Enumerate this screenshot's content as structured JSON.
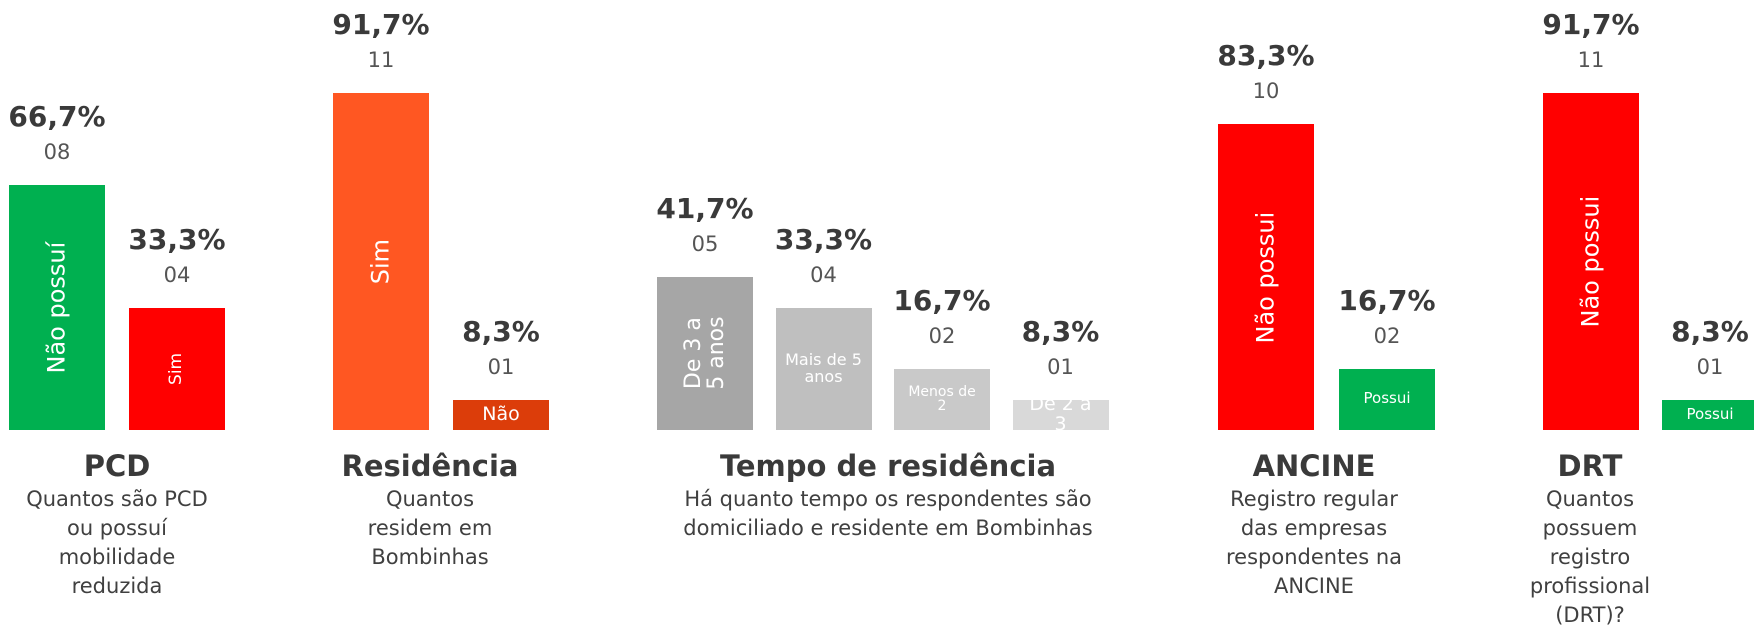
{
  "chart_data": [
    {
      "type": "bar",
      "title": "PCD",
      "subtitle": "Quantos são PCD ou possuí mobilidade reduzida",
      "categories": [
        "Não possuí",
        "Sim"
      ],
      "values": [
        66.7,
        33.3
      ],
      "value_labels": [
        "66,7%",
        "33,3%"
      ],
      "counts": [
        8,
        4
      ],
      "count_labels": [
        "08",
        "04"
      ],
      "colors": [
        "#00b050",
        "#ff0000"
      ]
    },
    {
      "type": "bar",
      "title": "Residência",
      "subtitle": "Quantos residem em Bombinhas",
      "categories": [
        "Sim",
        "Não"
      ],
      "values": [
        91.7,
        8.3
      ],
      "value_labels": [
        "91,7%",
        "8,3%"
      ],
      "counts": [
        11,
        1
      ],
      "count_labels": [
        "11",
        "01"
      ],
      "colors": [
        "#ff5722",
        "#dc3d0a"
      ]
    },
    {
      "type": "bar",
      "title": "Tempo de residência",
      "subtitle": "Há quanto tempo os respondentes são domiciliado e residente em Bombinhas",
      "categories": [
        "De 3 a 5 anos",
        "Mais de 5 anos",
        "Menos de 2",
        "De 2 a 3"
      ],
      "values": [
        41.7,
        33.3,
        16.7,
        8.3
      ],
      "value_labels": [
        "41,7%",
        "33,3%",
        "16,7%",
        "8,3%"
      ],
      "counts": [
        5,
        4,
        2,
        1
      ],
      "count_labels": [
        "05",
        "04",
        "02",
        "01"
      ],
      "colors": [
        "#a6a6a6",
        "#bfbfbf",
        "#c9c9c9",
        "#d9d9d9"
      ]
    },
    {
      "type": "bar",
      "title": "ANCINE",
      "subtitle": "Registro regular das empresas respondentes na ANCINE",
      "categories": [
        "Não possui",
        "Possui"
      ],
      "values": [
        83.3,
        16.7
      ],
      "value_labels": [
        "83,3%",
        "16,7%"
      ],
      "counts": [
        10,
        2
      ],
      "count_labels": [
        "10",
        "02"
      ],
      "colors": [
        "#ff0000",
        "#00b050"
      ]
    },
    {
      "type": "bar",
      "title": "DRT",
      "subtitle": "Quantos possuem registro profissional (DRT)?",
      "categories": [
        "Não possui",
        "Possui"
      ],
      "values": [
        91.7,
        8.3
      ],
      "value_labels": [
        "91,7%",
        "8,3%"
      ],
      "counts": [
        11,
        1
      ],
      "count_labels": [
        "11",
        "01"
      ],
      "colors": [
        "#ff0000",
        "#00b050"
      ]
    }
  ]
}
